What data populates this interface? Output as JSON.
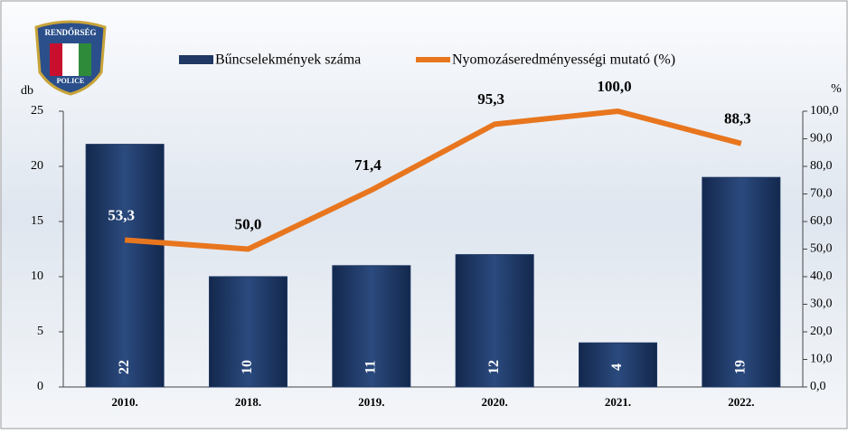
{
  "logo": {
    "top": "RENDŐRSÉG",
    "bottom": "POLICE"
  },
  "chart_data": {
    "type": "bar-line",
    "categories": [
      "2010.",
      "2018.",
      "2019.",
      "2020.",
      "2021.",
      "2022."
    ],
    "series": [
      {
        "name": "Bűncselekmények száma",
        "type": "bar",
        "color": "#1f3864",
        "values": [
          22,
          10,
          11,
          12,
          4,
          19
        ]
      },
      {
        "name": "Nyomozáseredményességi mutató (%)",
        "type": "line",
        "axis": "y2",
        "color": "#e8761e",
        "values": [
          53.3,
          50.0,
          71.4,
          95.3,
          100.0,
          88.3
        ],
        "value_labels": [
          "53,3",
          "50,0",
          "71,4",
          "95,3",
          "100,0",
          "88,3"
        ]
      }
    ],
    "ylabel": "db",
    "y2label": "%",
    "ylim": [
      0,
      25
    ],
    "yticks": [
      0,
      5,
      10,
      15,
      20,
      25
    ],
    "y2lim": [
      0,
      100
    ],
    "y2ticks": [
      {
        "value": 0,
        "label": "0,0"
      },
      {
        "value": 10,
        "label": "10,0"
      },
      {
        "value": 20,
        "label": "20,0"
      },
      {
        "value": 30,
        "label": "30,0"
      },
      {
        "value": 40,
        "label": "40,0"
      },
      {
        "value": 50,
        "label": "50,0"
      },
      {
        "value": 60,
        "label": "60,0"
      },
      {
        "value": 70,
        "label": "70,0"
      },
      {
        "value": 80,
        "label": "80,0"
      },
      {
        "value": 90,
        "label": "90,0"
      },
      {
        "value": 100,
        "label": "100,0"
      }
    ],
    "legend": "top"
  }
}
